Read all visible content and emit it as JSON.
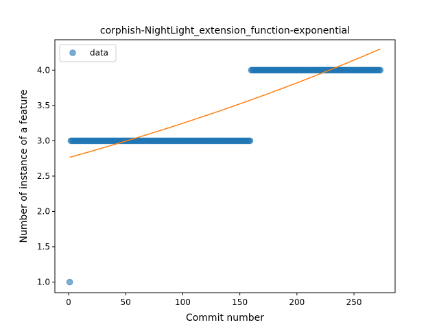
{
  "chart_data": {
    "type": "scatter",
    "title": "corphish-NightLight_extension_function-exponential",
    "xlabel": "Commit number",
    "ylabel": "Number of instance of a feature",
    "xlim": [
      -12,
      286
    ],
    "ylim": [
      0.85,
      4.43
    ],
    "xticks": [
      0,
      50,
      100,
      150,
      200,
      250
    ],
    "yticks": [
      1.0,
      1.5,
      2.0,
      2.5,
      3.0,
      3.5,
      4.0
    ],
    "xtick_labels": [
      "0",
      "50",
      "100",
      "150",
      "200",
      "250"
    ],
    "ytick_labels": [
      "1.0",
      "1.5",
      "2.0",
      "2.5",
      "3.0",
      "3.5",
      "4.0"
    ],
    "legend": {
      "location": "upper left",
      "entries": [
        "data"
      ]
    },
    "grid": false,
    "series": [
      {
        "name": "data",
        "kind": "scatter",
        "color": "#1f77b4",
        "alpha": 0.6,
        "segments": [
          {
            "x_from": 1,
            "x_to": 1,
            "y": 1.0
          },
          {
            "x_from": 2,
            "x_to": 159,
            "y": 3.0
          },
          {
            "x_from": 160,
            "x_to": 273,
            "y": 4.0
          }
        ]
      },
      {
        "kind": "line",
        "color": "#ff7f0e",
        "fit": "exponential",
        "a": 2.762,
        "b": 0.001621,
        "x_range": [
          1,
          273
        ]
      }
    ]
  }
}
